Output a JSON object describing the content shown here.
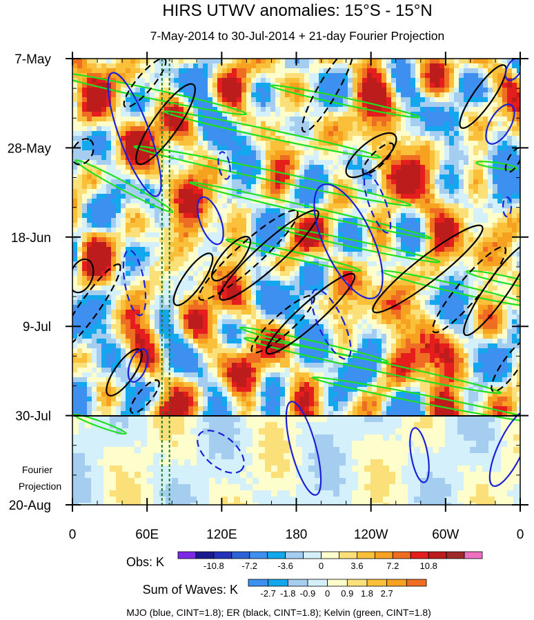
{
  "chart_data": {
    "type": "heatmap",
    "title": "HIRS UTWV anomalies: 15°S - 15°N",
    "subtitle": "7-May-2014 to 30-Jul-2014 + 21-day Fourier Projection",
    "x_ticks": [
      "0",
      "60E",
      "120E",
      "180",
      "120W",
      "60W",
      "0"
    ],
    "x_range": [
      0,
      360
    ],
    "y_ticks": [
      "7-May",
      "28-May",
      "18-Jun",
      "9-Jul",
      "30-Jul",
      "20-Aug"
    ],
    "y_axis_direction": "time increases downward",
    "projection_label": [
      "Fourier",
      "Projection"
    ],
    "projection_boundary": "30-Jul",
    "reference_lines_longitude": [
      72,
      78
    ],
    "obs_colorbar": {
      "label": "Obs: K",
      "tick_labels": [
        "-10.8",
        "-7.2",
        "-3.6",
        "0",
        "3.6",
        "7.2",
        "10.8"
      ],
      "colors": [
        "#7d2ae8",
        "#1b1a8f",
        "#2432b7",
        "#2e63d8",
        "#3d8ff0",
        "#13a8ee",
        "#a5cdf0",
        "#d4f0fb",
        "#fefecd",
        "#fbe07a",
        "#fbc03a",
        "#f6a11f",
        "#ee6d23",
        "#e51d1d",
        "#bd1c1c",
        "#9e2a2a",
        "#ef6fc0"
      ]
    },
    "waves_colorbar": {
      "label": "Sum of Waves: K",
      "tick_labels": [
        "-2.7",
        "-1.8",
        "-0.9",
        "0",
        "0.9",
        "1.8",
        "2.7"
      ],
      "colors": [
        "#3d8ff0",
        "#13a8ee",
        "#a5cdf0",
        "#d4f0fb",
        "#fefecd",
        "#fbe07a",
        "#fbc03a",
        "#f6a11f",
        "#ee6d23"
      ]
    },
    "legend_text": "MJO (blue, CINT=1.8); ER (black, CINT=1.8); Kelvin (green, CINT=1.8)",
    "series": [
      {
        "name": "MJO",
        "color": "#1a20d8"
      },
      {
        "name": "ER",
        "color": "#000000"
      },
      {
        "name": "Kelvin",
        "color": "#1fe01f"
      }
    ]
  }
}
